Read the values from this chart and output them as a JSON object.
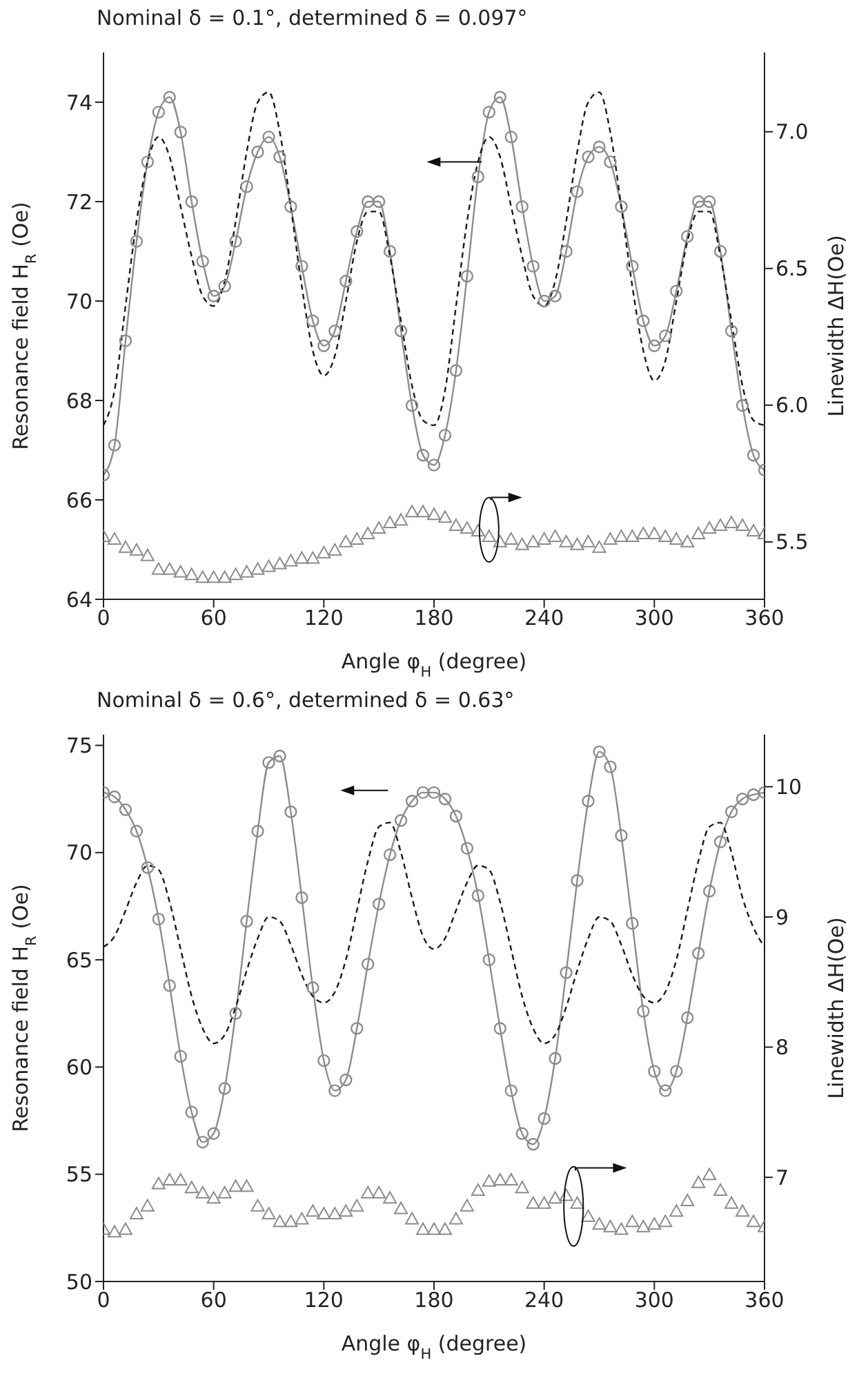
{
  "chart_data": [
    {
      "type": "line",
      "title": "Nominal δ = 0.1°, determined δ = 0.097°",
      "xlabel": "Angle φ$_{H}$ (degree)",
      "ylabel": "Resonance field H$_{R}$ (Oe)",
      "y2label": "Linewidth ΔH(Oe)",
      "x": [
        0,
        6,
        12,
        18,
        24,
        30,
        36,
        42,
        48,
        54,
        60,
        66,
        72,
        78,
        84,
        90,
        96,
        102,
        108,
        114,
        120,
        126,
        132,
        138,
        144,
        150,
        156,
        162,
        168,
        174,
        180,
        186,
        192,
        198,
        204,
        210,
        216,
        222,
        228,
        234,
        240,
        246,
        252,
        258,
        264,
        270,
        276,
        282,
        288,
        294,
        300,
        306,
        312,
        318,
        324,
        330,
        336,
        342,
        348,
        354,
        360
      ],
      "xlim": [
        0,
        360
      ],
      "xticks": [
        0,
        60,
        120,
        180,
        240,
        300,
        360
      ],
      "ylim": [
        64,
        75
      ],
      "yticks": [
        64,
        66,
        68,
        70,
        72,
        74
      ],
      "y2lim": [
        5.29,
        7.29
      ],
      "y2ticks": [
        5.5,
        {
          "value": 6,
          "label": "6.0"
        },
        6.5,
        {
          "value": 7,
          "label": "7.0"
        }
      ],
      "grid": false,
      "legend": false,
      "series": [
        {
          "type": "line",
          "color": "#8c8c8c",
          "marker": "circle",
          "line_style": "solid",
          "values": [
            66.5,
            67.1,
            69.2,
            71.2,
            72.8,
            73.8,
            74.1,
            73.4,
            72.0,
            70.8,
            70.1,
            70.3,
            71.2,
            72.3,
            73.0,
            73.3,
            72.9,
            71.9,
            70.7,
            69.6,
            69.1,
            69.4,
            70.4,
            71.4,
            72.0,
            72.0,
            71.0,
            69.4,
            67.9,
            66.9,
            66.7,
            67.3,
            68.6,
            70.5,
            72.5,
            73.8,
            74.1,
            73.3,
            71.9,
            70.7,
            70.0,
            70.1,
            71.0,
            72.2,
            72.9,
            73.1,
            72.8,
            71.9,
            70.7,
            69.6,
            69.1,
            69.3,
            70.2,
            71.3,
            72.0,
            72.0,
            71.0,
            69.4,
            67.9,
            66.9,
            66.6
          ]
        },
        {
          "type": "line",
          "color": "#1a1a1a",
          "marker": "none",
          "line_style": "dashed",
          "values": [
            67.5,
            68.2,
            69.9,
            71.6,
            72.8,
            73.3,
            72.9,
            71.9,
            70.9,
            70.1,
            69.9,
            70.4,
            71.6,
            73.0,
            74.0,
            74.2,
            73.4,
            71.9,
            70.3,
            69.0,
            68.5,
            68.9,
            70.0,
            71.2,
            71.8,
            71.8,
            70.9,
            69.6,
            68.3,
            67.6,
            67.5,
            68.2,
            69.9,
            71.6,
            72.8,
            73.3,
            72.9,
            71.9,
            70.9,
            70.1,
            69.9,
            70.4,
            71.6,
            73.0,
            74.0,
            74.2,
            73.4,
            71.9,
            70.3,
            69.0,
            68.4,
            68.8,
            70.0,
            71.2,
            71.8,
            71.8,
            70.9,
            69.6,
            68.3,
            67.6,
            67.5
          ]
        },
        {
          "type": "scatter",
          "axis": "y2",
          "color": "#8c8c8c",
          "marker": "triangle",
          "values": [
            5.52,
            5.51,
            5.48,
            5.47,
            5.45,
            5.4,
            5.4,
            5.39,
            5.38,
            5.37,
            5.37,
            5.37,
            5.38,
            5.39,
            5.4,
            5.41,
            5.42,
            5.43,
            5.44,
            5.44,
            5.46,
            5.47,
            5.5,
            5.51,
            5.53,
            5.55,
            5.57,
            5.58,
            5.61,
            5.61,
            5.6,
            5.59,
            5.56,
            5.55,
            5.54,
            5.52,
            5.5,
            5.51,
            5.49,
            5.5,
            5.51,
            5.52,
            5.5,
            5.49,
            5.5,
            5.48,
            5.51,
            5.52,
            5.52,
            5.53,
            5.53,
            5.52,
            5.51,
            5.5,
            5.53,
            5.55,
            5.56,
            5.57,
            5.56,
            5.54,
            5.53
          ]
        }
      ]
    },
    {
      "type": "line",
      "title": "Nominal δ = 0.6°, determined δ = 0.63°",
      "xlabel": "Angle φ$_{H}$ (degree)",
      "ylabel": "Resonance field H$_{R}$ (Oe)",
      "y2label": "Linewidth ΔH(Oe)",
      "x": [
        0,
        6,
        12,
        18,
        24,
        30,
        36,
        42,
        48,
        54,
        60,
        66,
        72,
        78,
        84,
        90,
        96,
        102,
        108,
        114,
        120,
        126,
        132,
        138,
        144,
        150,
        156,
        162,
        168,
        174,
        180,
        186,
        192,
        198,
        204,
        210,
        216,
        222,
        228,
        234,
        240,
        246,
        252,
        258,
        264,
        270,
        276,
        282,
        288,
        294,
        300,
        306,
        312,
        318,
        324,
        330,
        336,
        342,
        348,
        354,
        360
      ],
      "xlim": [
        0,
        360
      ],
      "xticks": [
        0,
        60,
        120,
        180,
        240,
        300,
        360
      ],
      "ylim": [
        50,
        75.5
      ],
      "yticks": [
        50,
        55,
        60,
        65,
        70,
        75
      ],
      "y2lim": [
        6.2,
        10.4
      ],
      "y2ticks": [
        7,
        8,
        9,
        10
      ],
      "grid": false,
      "legend": false,
      "series": [
        {
          "type": "line",
          "color": "#8c8c8c",
          "marker": "circle",
          "line_style": "solid",
          "values": [
            72.8,
            72.6,
            72.0,
            71.0,
            69.3,
            66.9,
            63.8,
            60.5,
            57.9,
            56.5,
            56.9,
            59.0,
            62.5,
            66.8,
            71.0,
            74.2,
            74.5,
            71.9,
            67.9,
            63.7,
            60.3,
            58.9,
            59.4,
            61.8,
            64.8,
            67.6,
            69.9,
            71.5,
            72.4,
            72.8,
            72.8,
            72.5,
            71.7,
            70.2,
            68.0,
            65.0,
            61.8,
            58.9,
            56.9,
            56.4,
            57.6,
            60.4,
            64.4,
            68.7,
            72.4,
            74.7,
            74.0,
            70.8,
            66.7,
            62.6,
            59.8,
            58.9,
            59.8,
            62.3,
            65.3,
            68.2,
            70.5,
            71.9,
            72.5,
            72.7,
            72.8
          ]
        },
        {
          "type": "line",
          "color": "#1a1a1a",
          "marker": "none",
          "line_style": "dashed",
          "values": [
            65.6,
            66.1,
            67.3,
            68.6,
            69.4,
            69.2,
            67.7,
            65.5,
            63.3,
            61.8,
            61.1,
            61.5,
            62.8,
            64.5,
            66.0,
            67.0,
            66.8,
            65.7,
            64.3,
            63.3,
            63.0,
            63.5,
            65.0,
            67.3,
            69.6,
            71.2,
            71.4,
            70.0,
            67.9,
            66.1,
            65.5,
            66.0,
            67.3,
            68.6,
            69.4,
            69.2,
            67.7,
            65.5,
            63.3,
            61.8,
            61.1,
            61.5,
            62.8,
            64.5,
            66.0,
            67.0,
            66.8,
            65.7,
            64.3,
            63.3,
            63.0,
            63.5,
            65.0,
            67.3,
            69.6,
            71.2,
            71.4,
            70.0,
            67.9,
            66.5,
            65.6
          ]
        },
        {
          "type": "scatter",
          "axis": "y2",
          "color": "#8c8c8c",
          "marker": "triangle",
          "values": [
            6.6,
            6.58,
            6.6,
            6.72,
            6.78,
            6.95,
            6.98,
            6.98,
            6.92,
            6.88,
            6.84,
            6.88,
            6.93,
            6.93,
            6.78,
            6.72,
            6.66,
            6.66,
            6.68,
            6.74,
            6.72,
            6.72,
            6.74,
            6.78,
            6.88,
            6.88,
            6.84,
            6.76,
            6.68,
            6.6,
            6.6,
            6.6,
            6.68,
            6.78,
            6.9,
            6.97,
            6.98,
            6.98,
            6.92,
            6.8,
            6.8,
            6.84,
            6.86,
            6.8,
            6.7,
            6.64,
            6.62,
            6.6,
            6.66,
            6.62,
            6.64,
            6.66,
            6.74,
            6.82,
            6.96,
            7.02,
            6.9,
            6.8,
            6.74,
            6.66,
            6.62
          ]
        }
      ]
    }
  ]
}
